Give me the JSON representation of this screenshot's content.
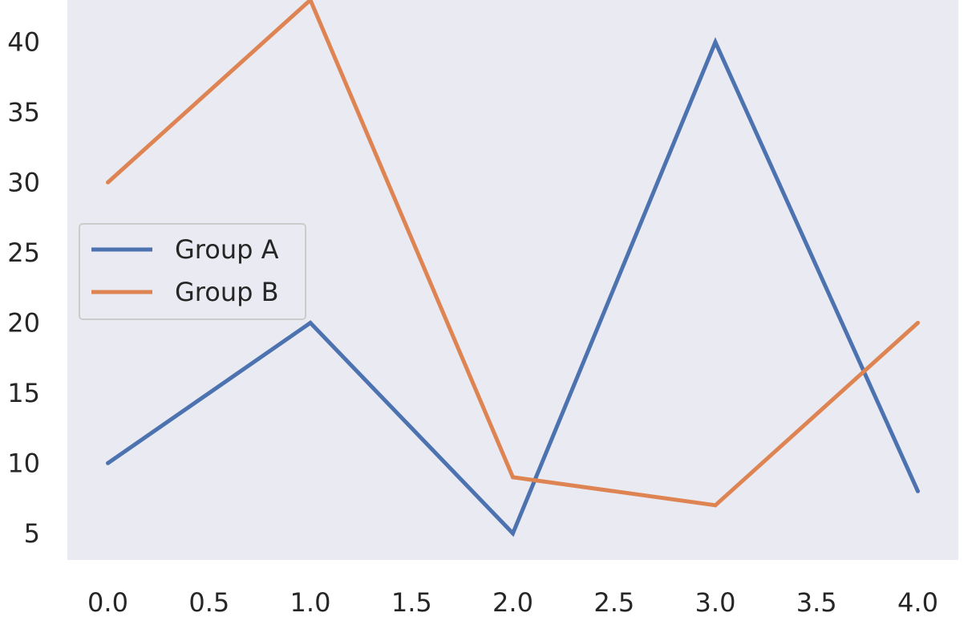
{
  "chart_data": {
    "type": "line",
    "title": "",
    "xlabel": "",
    "ylabel": "",
    "x": [
      0,
      1,
      2,
      3,
      4
    ],
    "series": [
      {
        "name": "Group A",
        "color": "#4c72b0",
        "values": [
          10,
          20,
          5,
          40,
          8
        ]
      },
      {
        "name": "Group B",
        "color": "#dd8452",
        "values": [
          30,
          43,
          9,
          7,
          20
        ]
      }
    ],
    "xlim": [
      -0.2,
      4.2
    ],
    "ylim": [
      3.1,
      43.0
    ],
    "x_ticks": [
      0.0,
      0.5,
      1.0,
      1.5,
      2.0,
      2.5,
      3.0,
      3.5,
      4.0
    ],
    "x_tick_labels": [
      "0.0",
      "0.5",
      "1.0",
      "1.5",
      "2.0",
      "2.5",
      "3.0",
      "3.5",
      "4.0"
    ],
    "y_ticks": [
      5,
      10,
      15,
      20,
      25,
      30,
      35,
      40
    ],
    "y_tick_labels": [
      "5",
      "10",
      "15",
      "20",
      "25",
      "30",
      "35",
      "40"
    ],
    "grid": false,
    "legend_position": "center-left",
    "background": "#eaeaf2"
  }
}
